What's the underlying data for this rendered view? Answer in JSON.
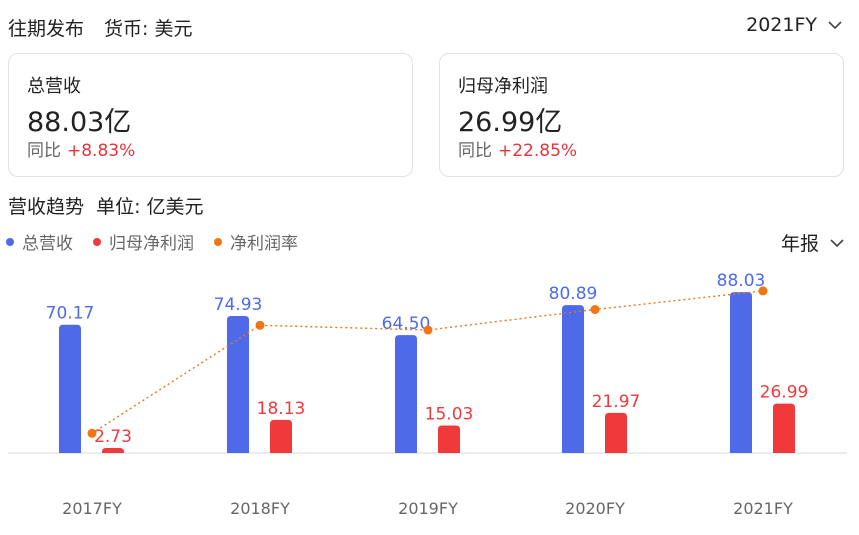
{
  "header": {
    "title": "往期发布",
    "currency_label": "货币: 美元",
    "period": "2021FY"
  },
  "cards": [
    {
      "label": "总营收",
      "value": "88.03亿",
      "yoy_label": "同比",
      "yoy_value": "+8.83%"
    },
    {
      "label": "归母净利润",
      "value": "26.99亿",
      "yoy_label": "同比",
      "yoy_value": "+22.85%"
    }
  ],
  "trend": {
    "title": "营收趋势",
    "unit_label": "单位: 亿美元",
    "report_type": "年报"
  },
  "colors": {
    "revenue": "#4f6ae8",
    "profit": "#f0393a",
    "margin": "#f07515",
    "positive": "#e8333b"
  },
  "chart_data": {
    "type": "bar",
    "categories": [
      "2017FY",
      "2018FY",
      "2019FY",
      "2020FY",
      "2021FY"
    ],
    "series": [
      {
        "name": "总营收",
        "type": "bar",
        "values": [
          70.17,
          74.93,
          64.5,
          80.89,
          88.03
        ]
      },
      {
        "name": "归母净利润",
        "type": "bar",
        "values": [
          2.73,
          18.13,
          15.03,
          21.97,
          26.99
        ]
      },
      {
        "name": "净利润率",
        "type": "line",
        "values": [
          3.89,
          24.2,
          23.3,
          27.16,
          30.66
        ]
      }
    ],
    "legend_position": "top-left",
    "grid": false
  }
}
